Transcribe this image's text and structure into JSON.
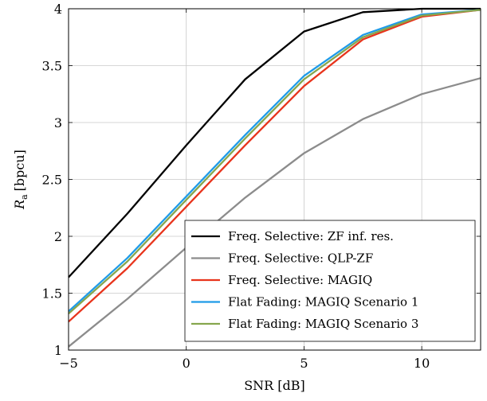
{
  "chart_data": {
    "type": "line",
    "xlabel": "SNR [dB]",
    "ylabel_main": "R",
    "ylabel_sub": "a",
    "ylabel_unit": "[bpcu]",
    "xlim": [
      -5,
      12.5
    ],
    "ylim": [
      1,
      4
    ],
    "xticks": [
      -5,
      0,
      5,
      10
    ],
    "xtick_labels": [
      "−5",
      "0",
      "5",
      "10"
    ],
    "yticks": [
      1,
      1.5,
      2,
      2.5,
      3,
      3.5,
      4
    ],
    "ytick_labels": [
      "1",
      "1.5",
      "2",
      "2.5",
      "3",
      "3.5",
      "4"
    ],
    "grid": true,
    "legend_position": "bottom-right",
    "x": [
      -5,
      -2.5,
      0,
      2.5,
      5,
      7.5,
      10,
      12.5
    ],
    "series": [
      {
        "name": "Freq. Selective: ZF inf. res.",
        "color": "#000000",
        "values": [
          1.64,
          2.2,
          2.8,
          3.38,
          3.8,
          3.97,
          4.0,
          4.0
        ]
      },
      {
        "name": "Freq. Selective: QLP-ZF",
        "color": "#8c8c8c",
        "values": [
          1.03,
          1.45,
          1.9,
          2.34,
          2.73,
          3.03,
          3.25,
          3.39
        ]
      },
      {
        "name": "Freq. Selective: MAGIQ",
        "color": "#e8341c",
        "values": [
          1.25,
          1.72,
          2.26,
          2.8,
          3.32,
          3.73,
          3.93,
          3.99
        ]
      },
      {
        "name": "Flat Fading: MAGIQ Scenario 1",
        "color": "#1e9be8",
        "values": [
          1.34,
          1.81,
          2.35,
          2.89,
          3.41,
          3.77,
          3.95,
          3.99
        ]
      },
      {
        "name": "Flat Fading: MAGIQ Scenario 3",
        "color": "#86a64e",
        "values": [
          1.32,
          1.78,
          2.32,
          2.86,
          3.38,
          3.75,
          3.94,
          3.99
        ]
      }
    ]
  }
}
